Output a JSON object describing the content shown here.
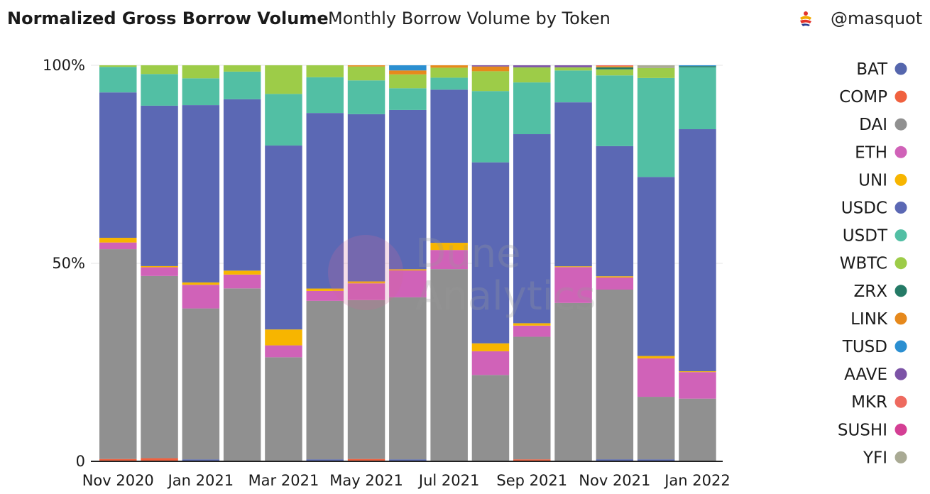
{
  "header": {
    "title": "Normalized Gross Borrow Volume",
    "subtitle": "Monthly Borrow Volume by Token",
    "author": "@masquot"
  },
  "watermark": {
    "line1": "Dune",
    "line2": "Analytics"
  },
  "chart_data": {
    "type": "bar",
    "stacked": true,
    "normalized": true,
    "categories": [
      "Nov 2020",
      "Dec 2020",
      "Jan 2021",
      "Feb 2021",
      "Mar 2021",
      "Apr 2021",
      "May 2021",
      "Jun 2021",
      "Jul 2021",
      "Aug 2021",
      "Sep 2021",
      "Oct 2021",
      "Nov 2021",
      "Dec 2021",
      "Jan 2022"
    ],
    "x_tick_labels": [
      "Nov 2020",
      "Jan 2021",
      "Mar 2021",
      "May 2021",
      "Jul 2021",
      "Sep 2021",
      "Nov 2021",
      "Jan 2022"
    ],
    "y_tick_labels": [
      "0",
      "50%",
      "100%"
    ],
    "ylim": [
      0,
      100
    ],
    "legend_position": "right",
    "series": [
      {
        "name": "BAT",
        "color": "#5566ad",
        "values": [
          0,
          0,
          0.5,
          0,
          0,
          0.5,
          0,
          0.5,
          0,
          0,
          0,
          0,
          0.5,
          0.5,
          0
        ]
      },
      {
        "name": "COMP",
        "color": "#f0613f",
        "values": [
          0.6,
          0.8,
          0,
          0,
          0,
          0,
          0.6,
          0,
          0,
          0,
          0.5,
          0,
          0,
          0,
          0
        ]
      },
      {
        "name": "DAI",
        "color": "#909090",
        "values": [
          53.4,
          46,
          38.3,
          43.8,
          26.2,
          39.9,
          40,
          41,
          48.2,
          21.8,
          30.8,
          39.8,
          42,
          15.8,
          15.8
        ]
      },
      {
        "name": "ETH",
        "color": "#d062b8",
        "values": [
          1.7,
          2.2,
          6,
          3.5,
          3,
          2.5,
          4.2,
          6.8,
          4.8,
          6,
          2.8,
          9,
          3,
          9.7,
          6.7
        ]
      },
      {
        "name": "UNI",
        "color": "#f7b500",
        "values": [
          1.2,
          0.3,
          0.6,
          1,
          4,
          0.6,
          0.5,
          0.3,
          1.8,
          2,
          0.6,
          0.2,
          0.3,
          0.6,
          0.2
        ]
      },
      {
        "name": "USDC",
        "color": "#5b68b4",
        "values": [
          37,
          40.5,
          45,
          43.4,
          46.3,
          44.2,
          42.1,
          40.3,
          38.4,
          45.7,
          47.5,
          41.2,
          32.2,
          45.2,
          61
        ]
      },
      {
        "name": "USDT",
        "color": "#52bfa4",
        "values": [
          6.5,
          8,
          6.8,
          7,
          13,
          9,
          8.5,
          5.5,
          3,
          18,
          13,
          8,
          17.5,
          25,
          15.6
        ]
      },
      {
        "name": "WBTC",
        "color": "#9dcc48",
        "values": [
          0.4,
          2.2,
          3.3,
          1.6,
          7.2,
          3,
          3.5,
          3.5,
          2.5,
          5,
          3.8,
          0.8,
          1.5,
          2.5,
          0
        ]
      },
      {
        "name": "ZRX",
        "color": "#247a66",
        "values": [
          0,
          0,
          0,
          0,
          0,
          0,
          0,
          0,
          0,
          0,
          0,
          0,
          0.5,
          0,
          0.3
        ]
      },
      {
        "name": "LINK",
        "color": "#e6891c",
        "values": [
          0,
          0,
          0,
          0,
          0,
          0,
          0.3,
          1,
          0.6,
          1.2,
          0,
          0,
          0.3,
          0,
          0
        ]
      },
      {
        "name": "TUSD",
        "color": "#2b8fd1",
        "values": [
          0,
          0,
          0,
          0,
          0,
          0,
          0,
          1.3,
          0,
          0,
          0,
          0,
          0,
          0,
          0.2
        ]
      },
      {
        "name": "AAVE",
        "color": "#7c53a6",
        "values": [
          0,
          0,
          0,
          0,
          0,
          0,
          0,
          0,
          0,
          0.3,
          0.5,
          0.5,
          0,
          0,
          0
        ]
      },
      {
        "name": "MKR",
        "color": "#ee6a5f",
        "values": [
          0,
          0,
          0,
          0,
          0,
          0,
          0,
          0,
          0,
          0,
          0,
          0,
          0.2,
          0,
          0
        ]
      },
      {
        "name": "SUSHI",
        "color": "#d43f94",
        "values": [
          0,
          0,
          0,
          0,
          0,
          0,
          0,
          0,
          0,
          0,
          0,
          0,
          0,
          0,
          0
        ]
      },
      {
        "name": "YFI",
        "color": "#a9aa94",
        "values": [
          0,
          0,
          0,
          0,
          0,
          0,
          0,
          0,
          0,
          0,
          0,
          0,
          0,
          0.7,
          0
        ]
      }
    ]
  }
}
